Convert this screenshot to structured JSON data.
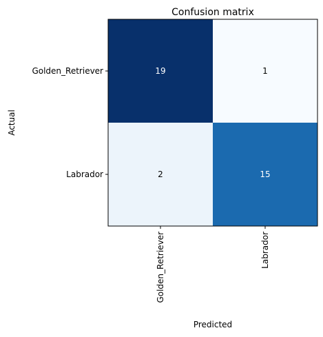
{
  "chart_data": {
    "type": "heatmap",
    "title": "Confusion matrix",
    "xlabel": "Predicted",
    "ylabel": "Actual",
    "x_categories": [
      "Golden_Retriever",
      "Labrador"
    ],
    "y_categories": [
      "Golden_Retriever",
      "Labrador"
    ],
    "values": [
      [
        19,
        1
      ],
      [
        2,
        15
      ]
    ],
    "colormap": "Blues",
    "color_min": "#f7fbff",
    "color_max": "#08306b",
    "text_color_dark": "#000000",
    "text_color_light": "#ffffff",
    "grid": false
  }
}
